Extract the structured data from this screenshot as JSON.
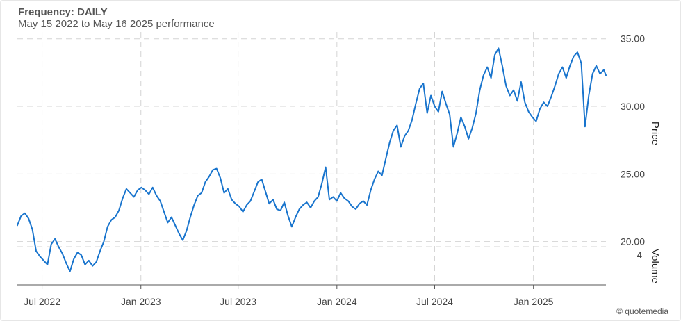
{
  "header": {
    "frequency_label": "Frequency: DAILY",
    "range_text": "May 15 2022 to May 16 2025 performance"
  },
  "credit": "© quotemedia",
  "colors": {
    "line": "#1874cd",
    "grid": "#d4d4d4",
    "axis": "#555555"
  },
  "chart_data": {
    "type": "line",
    "title": "Frequency: DAILY",
    "subtitle": "May 15 2022 to May 16 2025 performance",
    "ylabel": "Price",
    "volume_label": "Volume",
    "ylim": [
      16.9,
      35.5
    ],
    "yticks": [
      20,
      25,
      30,
      35
    ],
    "ytick_labels": [
      "20.00",
      "25.00",
      "30.00",
      "35.00"
    ],
    "volume_tick_label": "4",
    "xlim": [
      "2022-05-16",
      "2025-05-16"
    ],
    "xticks": [
      "2022-07-01",
      "2023-01-01",
      "2023-07-01",
      "2024-01-01",
      "2024-07-01",
      "2025-01-01"
    ],
    "xtick_labels": [
      "Jul 2022",
      "Jan 2023",
      "Jul 2023",
      "Jan 2024",
      "Jul 2024",
      "Jan 2025"
    ],
    "grid": true,
    "series": [
      {
        "points": [
          [
            "2022-05-16",
            21.2
          ],
          [
            "2022-05-23",
            21.9
          ],
          [
            "2022-05-30",
            22.1
          ],
          [
            "2022-06-06",
            21.7
          ],
          [
            "2022-06-13",
            20.9
          ],
          [
            "2022-06-20",
            19.3
          ],
          [
            "2022-06-27",
            18.9
          ],
          [
            "2022-07-04",
            18.6
          ],
          [
            "2022-07-11",
            18.3
          ],
          [
            "2022-07-18",
            19.8
          ],
          [
            "2022-07-25",
            20.2
          ],
          [
            "2022-08-01",
            19.6
          ],
          [
            "2022-08-08",
            19.1
          ],
          [
            "2022-08-15",
            18.4
          ],
          [
            "2022-08-22",
            17.8
          ],
          [
            "2022-08-29",
            18.7
          ],
          [
            "2022-09-05",
            19.2
          ],
          [
            "2022-09-12",
            19.0
          ],
          [
            "2022-09-19",
            18.3
          ],
          [
            "2022-09-26",
            18.6
          ],
          [
            "2022-10-03",
            18.2
          ],
          [
            "2022-10-10",
            18.5
          ],
          [
            "2022-10-17",
            19.3
          ],
          [
            "2022-10-24",
            20.0
          ],
          [
            "2022-10-31",
            21.1
          ],
          [
            "2022-11-07",
            21.6
          ],
          [
            "2022-11-14",
            21.8
          ],
          [
            "2022-11-21",
            22.3
          ],
          [
            "2022-11-28",
            23.2
          ],
          [
            "2022-12-05",
            23.9
          ],
          [
            "2022-12-12",
            23.6
          ],
          [
            "2022-12-19",
            23.3
          ],
          [
            "2022-12-26",
            23.8
          ],
          [
            "2023-01-02",
            24.0
          ],
          [
            "2023-01-09",
            23.8
          ],
          [
            "2023-01-16",
            23.5
          ],
          [
            "2023-01-23",
            24.0
          ],
          [
            "2023-01-30",
            23.4
          ],
          [
            "2023-02-06",
            23.0
          ],
          [
            "2023-02-13",
            22.2
          ],
          [
            "2023-02-20",
            21.4
          ],
          [
            "2023-02-27",
            21.8
          ],
          [
            "2023-03-06",
            21.2
          ],
          [
            "2023-03-13",
            20.6
          ],
          [
            "2023-03-20",
            20.1
          ],
          [
            "2023-03-27",
            20.8
          ],
          [
            "2023-04-03",
            21.8
          ],
          [
            "2023-04-10",
            22.7
          ],
          [
            "2023-04-17",
            23.4
          ],
          [
            "2023-04-24",
            23.6
          ],
          [
            "2023-05-01",
            24.4
          ],
          [
            "2023-05-08",
            24.8
          ],
          [
            "2023-05-15",
            25.3
          ],
          [
            "2023-05-22",
            25.4
          ],
          [
            "2023-05-29",
            24.7
          ],
          [
            "2023-06-05",
            23.6
          ],
          [
            "2023-06-12",
            23.9
          ],
          [
            "2023-06-19",
            23.1
          ],
          [
            "2023-06-26",
            22.8
          ],
          [
            "2023-07-03",
            22.6
          ],
          [
            "2023-07-10",
            22.2
          ],
          [
            "2023-07-17",
            22.7
          ],
          [
            "2023-07-24",
            23.0
          ],
          [
            "2023-07-31",
            23.7
          ],
          [
            "2023-08-07",
            24.4
          ],
          [
            "2023-08-14",
            24.6
          ],
          [
            "2023-08-21",
            23.7
          ],
          [
            "2023-08-28",
            22.8
          ],
          [
            "2023-09-04",
            23.1
          ],
          [
            "2023-09-11",
            22.4
          ],
          [
            "2023-09-18",
            22.3
          ],
          [
            "2023-09-25",
            22.9
          ],
          [
            "2023-10-02",
            21.9
          ],
          [
            "2023-10-09",
            21.1
          ],
          [
            "2023-10-16",
            21.8
          ],
          [
            "2023-10-23",
            22.4
          ],
          [
            "2023-10-30",
            22.7
          ],
          [
            "2023-11-06",
            22.9
          ],
          [
            "2023-11-13",
            22.5
          ],
          [
            "2023-11-20",
            23.0
          ],
          [
            "2023-11-27",
            23.3
          ],
          [
            "2023-12-04",
            24.3
          ],
          [
            "2023-12-11",
            25.5
          ],
          [
            "2023-12-18",
            23.1
          ],
          [
            "2023-12-25",
            23.3
          ],
          [
            "2024-01-01",
            23.0
          ],
          [
            "2024-01-08",
            23.6
          ],
          [
            "2024-01-15",
            23.2
          ],
          [
            "2024-01-22",
            23.0
          ],
          [
            "2024-01-29",
            22.6
          ],
          [
            "2024-02-05",
            22.4
          ],
          [
            "2024-02-12",
            22.8
          ],
          [
            "2024-02-19",
            23.0
          ],
          [
            "2024-02-26",
            22.7
          ],
          [
            "2024-03-04",
            23.8
          ],
          [
            "2024-03-11",
            24.6
          ],
          [
            "2024-03-18",
            25.2
          ],
          [
            "2024-03-25",
            24.9
          ],
          [
            "2024-04-01",
            26.1
          ],
          [
            "2024-04-08",
            27.3
          ],
          [
            "2024-04-15",
            28.2
          ],
          [
            "2024-04-22",
            28.6
          ],
          [
            "2024-04-29",
            27.0
          ],
          [
            "2024-05-06",
            27.8
          ],
          [
            "2024-05-13",
            28.2
          ],
          [
            "2024-05-20",
            29.0
          ],
          [
            "2024-05-27",
            30.2
          ],
          [
            "2024-06-03",
            31.3
          ],
          [
            "2024-06-10",
            31.7
          ],
          [
            "2024-06-17",
            29.5
          ],
          [
            "2024-06-24",
            30.8
          ],
          [
            "2024-07-01",
            30.0
          ],
          [
            "2024-07-08",
            29.6
          ],
          [
            "2024-07-15",
            31.1
          ],
          [
            "2024-07-22",
            30.2
          ],
          [
            "2024-07-29",
            29.4
          ],
          [
            "2024-08-05",
            27.0
          ],
          [
            "2024-08-12",
            28.0
          ],
          [
            "2024-08-19",
            29.2
          ],
          [
            "2024-08-26",
            28.5
          ],
          [
            "2024-09-02",
            27.6
          ],
          [
            "2024-09-09",
            28.4
          ],
          [
            "2024-09-16",
            29.5
          ],
          [
            "2024-09-23",
            31.2
          ],
          [
            "2024-09-30",
            32.3
          ],
          [
            "2024-10-07",
            32.9
          ],
          [
            "2024-10-14",
            32.1
          ],
          [
            "2024-10-21",
            33.8
          ],
          [
            "2024-10-28",
            34.3
          ],
          [
            "2024-11-04",
            33.0
          ],
          [
            "2024-11-11",
            31.5
          ],
          [
            "2024-11-18",
            30.8
          ],
          [
            "2024-11-25",
            31.2
          ],
          [
            "2024-12-02",
            30.4
          ],
          [
            "2024-12-09",
            31.8
          ],
          [
            "2024-12-16",
            30.3
          ],
          [
            "2024-12-23",
            29.6
          ],
          [
            "2024-12-30",
            29.2
          ],
          [
            "2025-01-06",
            28.9
          ],
          [
            "2025-01-13",
            29.8
          ],
          [
            "2025-01-20",
            30.3
          ],
          [
            "2025-01-27",
            30.0
          ],
          [
            "2025-02-03",
            30.7
          ],
          [
            "2025-02-10",
            31.5
          ],
          [
            "2025-02-17",
            32.4
          ],
          [
            "2025-02-24",
            32.9
          ],
          [
            "2025-03-03",
            32.1
          ],
          [
            "2025-03-10",
            33.0
          ],
          [
            "2025-03-17",
            33.7
          ],
          [
            "2025-03-24",
            34.0
          ],
          [
            "2025-03-31",
            33.2
          ],
          [
            "2025-04-07",
            28.5
          ],
          [
            "2025-04-14",
            30.8
          ],
          [
            "2025-04-21",
            32.4
          ],
          [
            "2025-04-28",
            33.0
          ],
          [
            "2025-05-05",
            32.4
          ],
          [
            "2025-05-12",
            32.7
          ],
          [
            "2025-05-16",
            32.3
          ]
        ]
      }
    ]
  }
}
